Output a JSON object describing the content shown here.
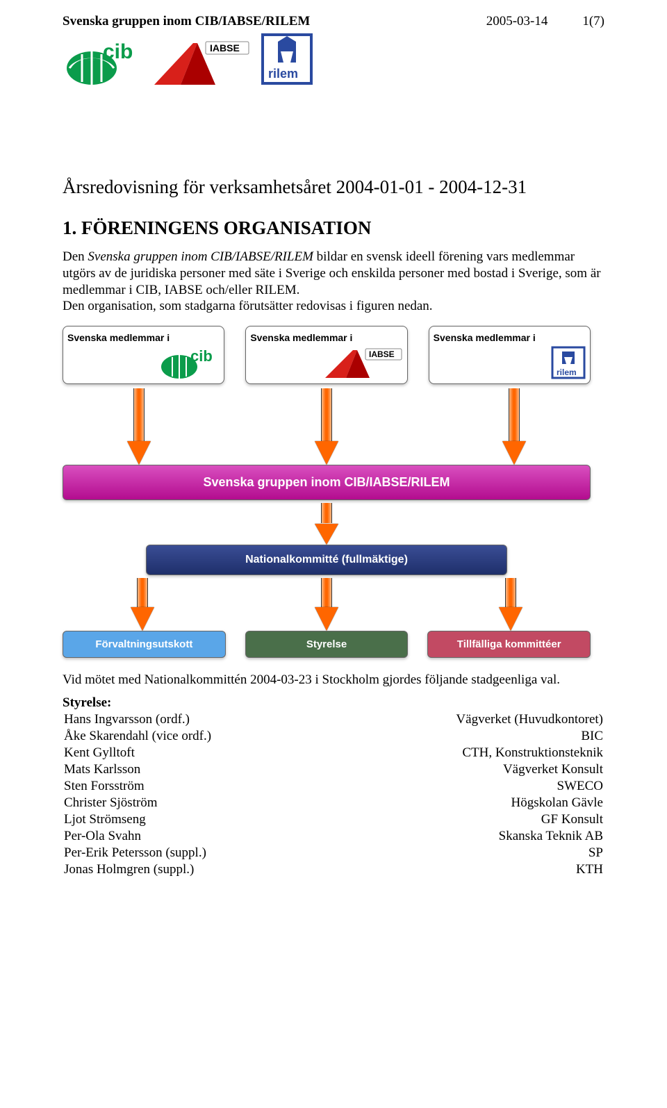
{
  "header": {
    "org": "Svenska gruppen inom CIB/IABSE/RILEM",
    "date": "2005-03-14",
    "page": "1(7)"
  },
  "logos": {
    "cib_green": "#0b9c4b",
    "cib_white": "#ffffff",
    "iabse_red": "#d8201a",
    "iabse_text": "IABSE",
    "rilem_blue": "#2a4aa0",
    "rilem_text": "rilem"
  },
  "title": "Årsredovisning för verksamhetsåret 2004-01-01 - 2004-12-31",
  "section1": "1.   FÖRENINGENS ORGANISATION",
  "para1": "Den Svenska gruppen inom CIB/IABSE/RILEM bildar en svensk ideell förening vars medlemmar utgörs av de  juridiska personer med säte i Sverige och enskilda personer med bostad i Sverige, som är medlemmar i CIB, IABSE och/eller RILEM.",
  "para1b": "Den organisation, som stadgarna förutsätter redovisas i figuren nedan.",
  "diagram": {
    "member_label": "Svenska medlemmar i",
    "group_bar": "Svenska gruppen inom CIB/IABSE/RILEM",
    "nat_bar": "Nationalkommitté (fullmäktige)",
    "bottom": [
      {
        "label": "Förvaltningsutskott",
        "bg": "#5aa6e8"
      },
      {
        "label": "Styrelse",
        "bg": "#4a6f4a"
      },
      {
        "label": "Tillfälliga kommittéer",
        "bg": "#c24a63"
      }
    ]
  },
  "para2": "Vid mötet med Nationalkommittén 2004-03-23 i Stockholm gjordes följande stadgeenliga val.",
  "styrelse_label": "Styrelse:",
  "styrelse": [
    {
      "name": "Hans Ingvarsson (ordf.)",
      "org": "Vägverket (Huvudkontoret)"
    },
    {
      "name": "Åke Skarendahl (vice ordf.)",
      "org": "BIC"
    },
    {
      "name": "Kent Gylltoft",
      "org": "CTH, Konstruktionsteknik"
    },
    {
      "name": "Mats Karlsson",
      "org": "Vägverket Konsult"
    },
    {
      "name": "Sten Forsström",
      "org": "SWECO"
    },
    {
      "name": "Christer Sjöström",
      "org": "Högskolan Gävle"
    },
    {
      "name": "Ljot Strömseng",
      "org": "GF Konsult"
    },
    {
      "name": "Per-Ola Svahn",
      "org": "Skanska Teknik AB"
    },
    {
      "name": "Per-Erik Petersson (suppl.)",
      "org": "SP"
    },
    {
      "name": "Jonas Holmgren (suppl.)",
      "org": "KTH"
    }
  ]
}
